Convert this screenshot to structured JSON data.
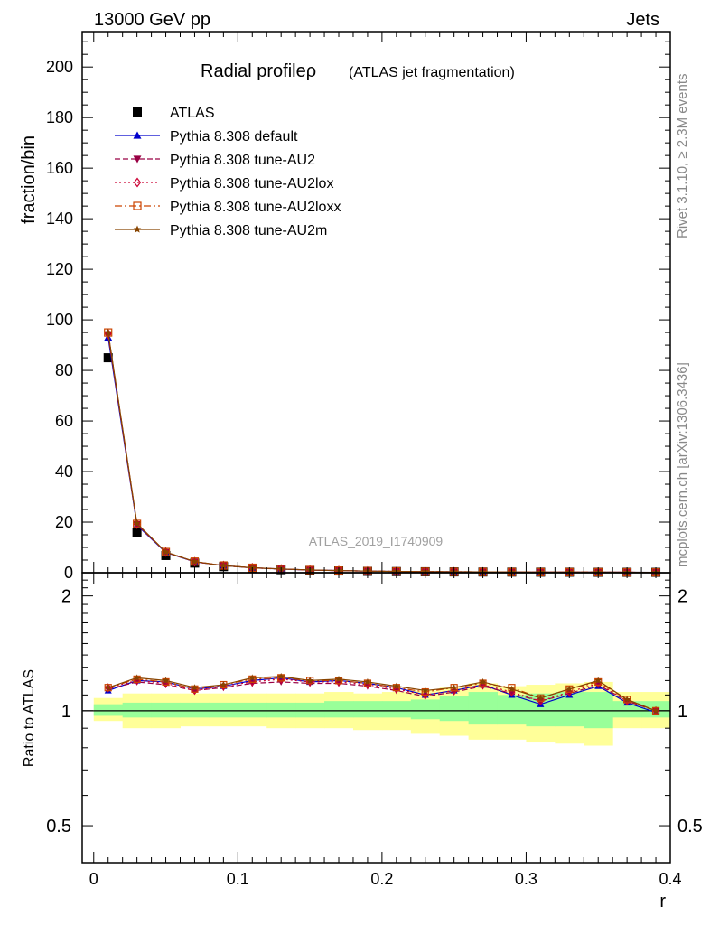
{
  "header": {
    "left": "13000 GeV pp",
    "right": "Jets"
  },
  "side_labels": {
    "rivet": "Rivet 3.1.10, ≥ 2.3M events",
    "mcplots": "mcplots.cern.ch [arXiv:1306.3436]"
  },
  "chart_data": [
    {
      "type": "scatter",
      "panel": "main",
      "title": "Radial profileρ",
      "subtitle": "(ATLAS jet fragmentation)",
      "xlabel": "r",
      "ylabel": "fraction/bin",
      "watermark": "ATLAS_2019_I1740909",
      "xlim": [
        -0.008,
        0.4
      ],
      "ylim": [
        0,
        214
      ],
      "yticks": [
        0,
        20,
        40,
        60,
        80,
        100,
        120,
        140,
        160,
        180,
        200
      ],
      "ytick_labels": [
        "0",
        "20",
        "40",
        "60",
        "80",
        "100",
        "120",
        "140",
        "160",
        "180",
        "200"
      ],
      "legend_position": "top-left",
      "x": [
        0.01,
        0.03,
        0.05,
        0.07,
        0.09,
        0.11,
        0.13,
        0.15,
        0.17,
        0.19,
        0.21,
        0.23,
        0.25,
        0.27,
        0.29,
        0.31,
        0.33,
        0.35,
        0.37,
        0.39
      ],
      "series": [
        {
          "name": "ATLAS",
          "color": "#000000",
          "marker": "square-filled",
          "line": "none",
          "values": [
            85,
            16,
            6.8,
            3.8,
            2.4,
            1.6,
            1.2,
            0.9,
            0.7,
            0.55,
            0.45,
            0.38,
            0.32,
            0.28,
            0.25,
            0.22,
            0.2,
            0.18,
            0.16,
            0.15
          ]
        },
        {
          "name": "Pythia 8.308 default",
          "color": "#0000cc",
          "marker": "triangle-up-filled",
          "line": "solid",
          "values": [
            93,
            18.8,
            8.0,
            4.3,
            2.8,
            1.95,
            1.48,
            1.08,
            0.85,
            0.65,
            0.52,
            0.42,
            0.36,
            0.33,
            0.27,
            0.23,
            0.22,
            0.21,
            0.17,
            0.15
          ]
        },
        {
          "name": "Pythia 8.308 tune-AU2",
          "color": "#990044",
          "marker": "triangle-down-filled",
          "line": "dashed",
          "values": [
            94,
            19.1,
            8.1,
            4.3,
            2.8,
            1.9,
            1.45,
            1.07,
            0.83,
            0.64,
            0.51,
            0.41,
            0.35,
            0.32,
            0.27,
            0.23,
            0.22,
            0.21,
            0.17,
            0.15
          ]
        },
        {
          "name": "Pythia 8.308 tune-AU2lox",
          "color": "#cc0033",
          "marker": "diamond-open",
          "line": "dotted",
          "values": [
            94.5,
            19.2,
            8.2,
            4.35,
            2.8,
            1.95,
            1.47,
            1.07,
            0.84,
            0.64,
            0.51,
            0.42,
            0.36,
            0.33,
            0.28,
            0.23,
            0.22,
            0.21,
            0.17,
            0.15
          ]
        },
        {
          "name": "Pythia 8.308 tune-AU2loxx",
          "color": "#cc4400",
          "marker": "square-open",
          "line": "dashdot",
          "values": [
            95,
            19.3,
            8.2,
            4.4,
            2.85,
            1.96,
            1.48,
            1.08,
            0.85,
            0.65,
            0.52,
            0.43,
            0.37,
            0.33,
            0.29,
            0.24,
            0.23,
            0.22,
            0.17,
            0.15
          ]
        },
        {
          "name": "Pythia 8.308 tune-AU2m",
          "color": "#884400",
          "marker": "star-filled",
          "line": "solid",
          "values": [
            95,
            19.5,
            8.2,
            4.4,
            2.8,
            1.97,
            1.5,
            1.09,
            0.86,
            0.65,
            0.52,
            0.43,
            0.37,
            0.33,
            0.28,
            0.24,
            0.23,
            0.22,
            0.17,
            0.15
          ]
        }
      ]
    },
    {
      "type": "line",
      "panel": "ratio",
      "ylabel": "Ratio to ATLAS",
      "xlabel": "r",
      "xlim": [
        -0.008,
        0.4
      ],
      "ylim": [
        0.4,
        2.3
      ],
      "log_y": true,
      "yticks": [
        0.5,
        1,
        2
      ],
      "ytick_labels": [
        "0.5",
        "1",
        "2"
      ],
      "xticks": [
        0,
        0.1,
        0.2,
        0.3,
        0.4
      ],
      "xtick_labels": [
        "0",
        "0.1",
        "0.2",
        "0.3",
        "0.4"
      ],
      "x": [
        0.01,
        0.03,
        0.05,
        0.07,
        0.09,
        0.11,
        0.13,
        0.15,
        0.17,
        0.19,
        0.21,
        0.23,
        0.25,
        0.27,
        0.29,
        0.31,
        0.33,
        0.35,
        0.37,
        0.39
      ],
      "bands": {
        "x_edges": [
          0.0,
          0.02,
          0.04,
          0.06,
          0.08,
          0.1,
          0.12,
          0.14,
          0.16,
          0.18,
          0.2,
          0.22,
          0.24,
          0.26,
          0.28,
          0.3,
          0.32,
          0.34,
          0.36,
          0.38,
          0.4
        ],
        "yellow": {
          "color": "#ffff99",
          "low": [
            0.94,
            0.9,
            0.9,
            0.91,
            0.91,
            0.91,
            0.9,
            0.9,
            0.9,
            0.89,
            0.89,
            0.87,
            0.86,
            0.84,
            0.84,
            0.83,
            0.82,
            0.81,
            0.9,
            0.9
          ],
          "high": [
            1.08,
            1.11,
            1.11,
            1.11,
            1.11,
            1.11,
            1.11,
            1.11,
            1.12,
            1.11,
            1.12,
            1.13,
            1.15,
            1.18,
            1.16,
            1.17,
            1.18,
            1.19,
            1.12,
            1.12
          ]
        },
        "green": {
          "color": "#99ff99",
          "low": [
            0.97,
            0.96,
            0.96,
            0.96,
            0.96,
            0.96,
            0.96,
            0.96,
            0.96,
            0.96,
            0.96,
            0.95,
            0.94,
            0.92,
            0.92,
            0.91,
            0.91,
            0.9,
            0.96,
            0.96
          ],
          "high": [
            1.04,
            1.05,
            1.05,
            1.05,
            1.05,
            1.05,
            1.05,
            1.05,
            1.06,
            1.06,
            1.06,
            1.07,
            1.09,
            1.12,
            1.1,
            1.11,
            1.12,
            1.12,
            1.06,
            1.06
          ]
        }
      },
      "series": [
        {
          "name": "Pythia 8.308 default",
          "color": "#0000cc",
          "marker": "triangle-up-filled",
          "line": "solid",
          "values": [
            1.13,
            1.2,
            1.19,
            1.14,
            1.16,
            1.2,
            1.22,
            1.19,
            1.2,
            1.18,
            1.15,
            1.1,
            1.13,
            1.17,
            1.1,
            1.04,
            1.1,
            1.16,
            1.05,
            0.99
          ]
        },
        {
          "name": "Pythia 8.308 tune-AU2",
          "color": "#990044",
          "marker": "triangle-down-filled",
          "line": "dashed",
          "values": [
            1.14,
            1.19,
            1.17,
            1.13,
            1.15,
            1.18,
            1.19,
            1.18,
            1.18,
            1.16,
            1.13,
            1.09,
            1.12,
            1.16,
            1.11,
            1.06,
            1.11,
            1.17,
            1.06,
            1.0
          ]
        },
        {
          "name": "Pythia 8.308 tune-AU2lox",
          "color": "#cc0033",
          "marker": "diamond-open",
          "line": "dotted",
          "values": [
            1.15,
            1.2,
            1.18,
            1.13,
            1.16,
            1.19,
            1.21,
            1.19,
            1.19,
            1.17,
            1.14,
            1.1,
            1.13,
            1.17,
            1.12,
            1.06,
            1.12,
            1.18,
            1.06,
            1.0
          ]
        },
        {
          "name": "Pythia 8.308 tune-AU2loxx",
          "color": "#cc4400",
          "marker": "square-open",
          "line": "dashdot",
          "values": [
            1.15,
            1.21,
            1.19,
            1.14,
            1.17,
            1.21,
            1.22,
            1.2,
            1.2,
            1.18,
            1.15,
            1.12,
            1.15,
            1.18,
            1.15,
            1.08,
            1.14,
            1.19,
            1.07,
            1.0
          ]
        },
        {
          "name": "Pythia 8.308 tune-AU2m",
          "color": "#884400",
          "marker": "star-filled",
          "line": "solid",
          "values": [
            1.15,
            1.22,
            1.2,
            1.15,
            1.17,
            1.22,
            1.23,
            1.2,
            1.21,
            1.19,
            1.16,
            1.13,
            1.15,
            1.19,
            1.14,
            1.08,
            1.14,
            1.2,
            1.07,
            1.0
          ]
        }
      ]
    }
  ]
}
